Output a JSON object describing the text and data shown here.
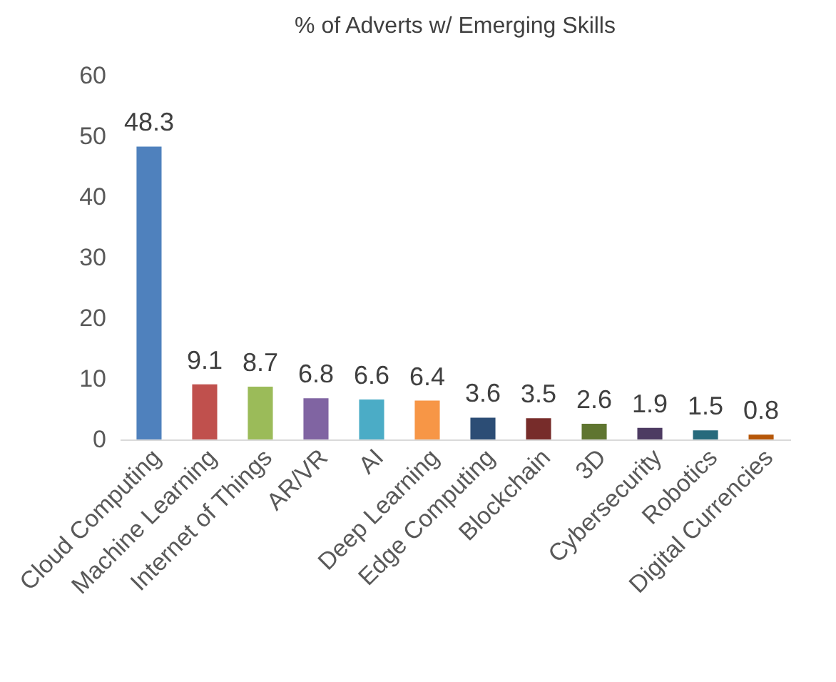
{
  "chart_data": {
    "type": "bar",
    "title": "% of Adverts w/ Emerging Skills",
    "categories": [
      "Cloud Computing",
      "Machine Learning",
      "Internet of Things",
      "AR/VR",
      "AI",
      "Deep Learning",
      "Edge Computing",
      "Blockchain",
      "3D",
      "Cybersecurity",
      "Robotics",
      "Digital Currencies"
    ],
    "values": [
      48.3,
      9.1,
      8.7,
      6.8,
      6.6,
      6.4,
      3.6,
      3.5,
      2.6,
      1.9,
      1.5,
      0.8
    ],
    "colors": [
      "#4f81bd",
      "#c0504d",
      "#9bbb59",
      "#8064a2",
      "#4bacc6",
      "#f79646",
      "#2c4d75",
      "#772c2a",
      "#5f7530",
      "#4d3b62",
      "#276a7c",
      "#b65708"
    ],
    "ylim": [
      0,
      60
    ],
    "yticks": [
      0,
      10,
      20,
      30,
      40,
      50,
      60
    ],
    "grid": false,
    "data_labels": true
  }
}
